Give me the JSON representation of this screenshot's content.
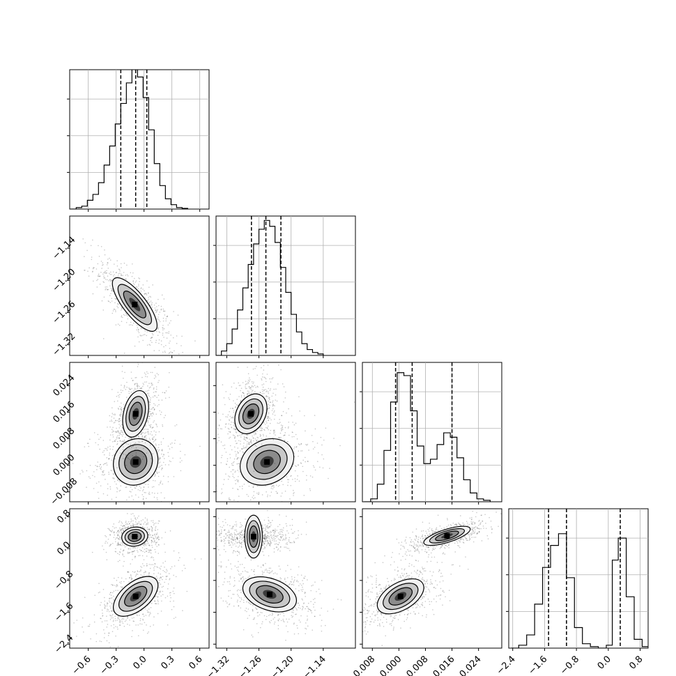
{
  "chart_data": {
    "type": "corner",
    "parameters": [
      {
        "range": [
          -0.8,
          0.7
        ],
        "ticks": [
          -0.6,
          -0.3,
          0.0,
          0.3,
          0.6
        ],
        "tick_labels": [
          "−0.6",
          "−0.3",
          "0.0",
          "0.3",
          "0.6"
        ],
        "hist_max": 0.95,
        "quantiles": [
          -0.25,
          -0.09,
          0.03
        ],
        "histogram": [
          {
            "x": -0.76,
            "y": 0.0
          },
          {
            "x": -0.7,
            "y": 0.01
          },
          {
            "x": -0.64,
            "y": 0.02
          },
          {
            "x": -0.58,
            "y": 0.06
          },
          {
            "x": -0.52,
            "y": 0.1
          },
          {
            "x": -0.46,
            "y": 0.18
          },
          {
            "x": -0.4,
            "y": 0.3
          },
          {
            "x": -0.34,
            "y": 0.43
          },
          {
            "x": -0.28,
            "y": 0.58
          },
          {
            "x": -0.22,
            "y": 0.72
          },
          {
            "x": -0.16,
            "y": 0.86
          },
          {
            "x": -0.1,
            "y": 0.99
          },
          {
            "x": -0.04,
            "y": 0.9
          },
          {
            "x": 0.02,
            "y": 0.76
          },
          {
            "x": 0.08,
            "y": 0.54
          },
          {
            "x": 0.14,
            "y": 0.31
          },
          {
            "x": 0.2,
            "y": 0.16
          },
          {
            "x": 0.26,
            "y": 0.07
          },
          {
            "x": 0.32,
            "y": 0.03
          },
          {
            "x": 0.38,
            "y": 0.01
          },
          {
            "x": 0.44,
            "y": 0.005
          }
        ]
      },
      {
        "range": [
          -1.34,
          -1.08
        ],
        "ticks": [
          -1.32,
          -1.26,
          -1.2,
          -1.14
        ],
        "tick_labels": [
          "−1.32",
          "−1.26",
          "−1.20",
          "−1.14"
        ],
        "hist_max": 0.95,
        "quantiles": [
          -1.274,
          -1.247,
          -1.219
        ],
        "histogram": [
          {
            "x": -1.335,
            "y": 0.0
          },
          {
            "x": -1.325,
            "y": 0.03
          },
          {
            "x": -1.315,
            "y": 0.08
          },
          {
            "x": -1.305,
            "y": 0.18
          },
          {
            "x": -1.295,
            "y": 0.31
          },
          {
            "x": -1.285,
            "y": 0.46
          },
          {
            "x": -1.275,
            "y": 0.62
          },
          {
            "x": -1.265,
            "y": 0.76
          },
          {
            "x": -1.255,
            "y": 0.86
          },
          {
            "x": -1.245,
            "y": 0.92
          },
          {
            "x": -1.235,
            "y": 0.88
          },
          {
            "x": -1.225,
            "y": 0.77
          },
          {
            "x": -1.215,
            "y": 0.6
          },
          {
            "x": -1.205,
            "y": 0.43
          },
          {
            "x": -1.195,
            "y": 0.28
          },
          {
            "x": -1.185,
            "y": 0.16
          },
          {
            "x": -1.175,
            "y": 0.08
          },
          {
            "x": -1.165,
            "y": 0.04
          },
          {
            "x": -1.155,
            "y": 0.02
          },
          {
            "x": -1.145,
            "y": 0.01
          }
        ]
      },
      {
        "range": [
          -0.011,
          0.031
        ],
        "ticks": [
          -0.008,
          0.0,
          0.008,
          0.016,
          0.024
        ],
        "tick_labels": [
          "−0.008",
          "0.000",
          "0.008",
          "0.016",
          "0.024"
        ],
        "hist_max": 0.95,
        "quantiles": [
          -0.001,
          0.004,
          0.016
        ],
        "histogram": [
          {
            "x": -0.0095,
            "y": 0.0
          },
          {
            "x": -0.0075,
            "y": 0.02
          },
          {
            "x": -0.0055,
            "y": 0.12
          },
          {
            "x": -0.0035,
            "y": 0.35
          },
          {
            "x": -0.0015,
            "y": 0.68
          },
          {
            "x": 0.0005,
            "y": 0.88
          },
          {
            "x": 0.0025,
            "y": 0.86
          },
          {
            "x": 0.0045,
            "y": 0.62
          },
          {
            "x": 0.0065,
            "y": 0.38
          },
          {
            "x": 0.0085,
            "y": 0.26
          },
          {
            "x": 0.0105,
            "y": 0.29
          },
          {
            "x": 0.0125,
            "y": 0.39
          },
          {
            "x": 0.0145,
            "y": 0.47
          },
          {
            "x": 0.0165,
            "y": 0.44
          },
          {
            "x": 0.0185,
            "y": 0.3
          },
          {
            "x": 0.0205,
            "y": 0.15
          },
          {
            "x": 0.0225,
            "y": 0.06
          },
          {
            "x": 0.0245,
            "y": 0.02
          },
          {
            "x": 0.0265,
            "y": 0.01
          }
        ]
      },
      {
        "range": [
          -2.5,
          1.0
        ],
        "ticks": [
          -2.4,
          -1.6,
          -0.8,
          0.0,
          0.8
        ],
        "tick_labels": [
          "−2.4",
          "−1.6",
          "−0.8",
          "0.0",
          "0.8"
        ],
        "hist_max": 0.95,
        "quantiles": [
          -1.5,
          -1.05,
          0.3
        ],
        "histogram": [
          {
            "x": -2.35,
            "y": 0.0
          },
          {
            "x": -2.15,
            "y": 0.02
          },
          {
            "x": -1.95,
            "y": 0.09
          },
          {
            "x": -1.75,
            "y": 0.3
          },
          {
            "x": -1.55,
            "y": 0.55
          },
          {
            "x": -1.35,
            "y": 0.7
          },
          {
            "x": -1.15,
            "y": 0.78
          },
          {
            "x": -0.95,
            "y": 0.48
          },
          {
            "x": -0.75,
            "y": 0.14
          },
          {
            "x": -0.55,
            "y": 0.03
          },
          {
            "x": -0.35,
            "y": 0.01
          },
          {
            "x": -0.15,
            "y": 0.0
          },
          {
            "x": 0.05,
            "y": 0.02
          },
          {
            "x": 0.15,
            "y": 0.6
          },
          {
            "x": 0.35,
            "y": 0.75
          },
          {
            "x": 0.55,
            "y": 0.35
          },
          {
            "x": 0.75,
            "y": 0.06
          },
          {
            "x": 0.95,
            "y": 0.01
          }
        ]
      }
    ],
    "pairs": [
      {
        "row": 1,
        "col": 0,
        "modes": [
          {
            "cx": -0.1,
            "cy": -1.245,
            "sx": 0.12,
            "sy": 0.025,
            "rho": -0.78
          }
        ]
      },
      {
        "row": 2,
        "col": 0,
        "modes": [
          {
            "cx": -0.09,
            "cy": 0.001,
            "sx": 0.12,
            "sy": 0.0035,
            "rho": 0.1
          },
          {
            "cx": -0.09,
            "cy": 0.0155,
            "sx": 0.07,
            "sy": 0.0035,
            "rho": 0.3
          }
        ]
      },
      {
        "row": 2,
        "col": 1,
        "modes": [
          {
            "cx": -1.245,
            "cy": 0.001,
            "sx": 0.025,
            "sy": 0.0035,
            "rho": 0.2
          },
          {
            "cx": -1.275,
            "cy": 0.0155,
            "sx": 0.015,
            "sy": 0.003,
            "rho": 0.3
          }
        ]
      },
      {
        "row": 3,
        "col": 0,
        "modes": [
          {
            "cx": -0.1,
            "cy": 0.3,
            "sx": 0.07,
            "sy": 0.12,
            "rho": 0.1
          },
          {
            "cx": -0.09,
            "cy": -1.2,
            "sx": 0.12,
            "sy": 0.25,
            "rho": 0.55
          }
        ]
      },
      {
        "row": 3,
        "col": 1,
        "modes": [
          {
            "cx": -1.27,
            "cy": 0.3,
            "sx": 0.02,
            "sy": 0.11,
            "rho": 0.0
          },
          {
            "cx": -1.24,
            "cy": -1.15,
            "sx": 0.025,
            "sy": 0.22,
            "rho": -0.35
          }
        ]
      },
      {
        "row": 3,
        "col": 2,
        "modes": [
          {
            "cx": 0.0145,
            "cy": 0.32,
            "sx": 0.0035,
            "sy": 0.12,
            "rho": 0.7
          },
          {
            "cx": 0.0005,
            "cy": -1.2,
            "sx": 0.0035,
            "sy": 0.22,
            "rho": 0.5
          }
        ]
      }
    ]
  }
}
